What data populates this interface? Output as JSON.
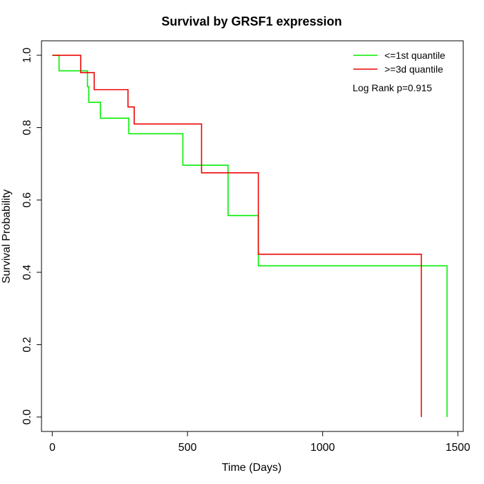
{
  "chart_data": {
    "type": "line",
    "title": "Survival by GRSF1 expression",
    "xlabel": "Time (Days)",
    "ylabel": "Survival Probability",
    "xlim": [
      -40,
      1520
    ],
    "ylim": [
      -0.04,
      1.04
    ],
    "x_ticks": [
      0,
      500,
      1000,
      1500
    ],
    "y_ticks": [
      0.0,
      0.2,
      0.4,
      0.6,
      0.8,
      1.0
    ],
    "x_tick_labels": [
      "0",
      "500",
      "1000",
      "1500"
    ],
    "y_tick_labels": [
      "0.0",
      "0.2",
      "0.4",
      "0.6",
      "0.8",
      "1.0"
    ],
    "grid": false,
    "legend_position": "top-right",
    "annotation": "Log Rank p=0.915",
    "series": [
      {
        "name": "<=1st quantile",
        "color": "#00ee00",
        "step_x": [
          0,
          25,
          130,
          135,
          178,
          283,
          483,
          650,
          762,
          1460
        ],
        "step_y": [
          1.0,
          0.957,
          0.913,
          0.87,
          0.826,
          0.783,
          0.696,
          0.557,
          0.418,
          0.0
        ]
      },
      {
        "name": ">=3d quantile",
        "color": "#ee0000",
        "step_x": [
          0,
          105,
          155,
          280,
          303,
          552,
          762,
          1365
        ],
        "step_y": [
          1.0,
          0.952,
          0.905,
          0.857,
          0.81,
          0.675,
          0.45,
          0.0
        ]
      }
    ]
  }
}
